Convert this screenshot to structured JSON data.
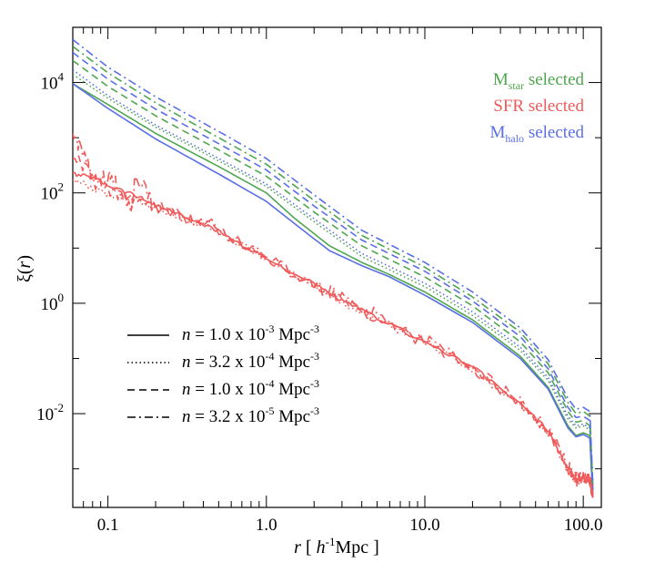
{
  "chart_data": {
    "type": "line",
    "title": "",
    "xlabel": {
      "pre": "r",
      "mid": " [ ",
      "h": "h",
      "sup": "-1",
      "post": "Mpc ]"
    },
    "ylabel": {
      "sym": "ξ",
      "open": "(",
      "var": "r",
      "close": ")"
    },
    "xscale": "log",
    "yscale": "log",
    "xlim": [
      0.06,
      130
    ],
    "ylim": [
      0.0002,
      100000
    ],
    "x_ticks": [
      {
        "value": 0.1,
        "label": "0.1"
      },
      {
        "value": 1,
        "label": "1.0"
      },
      {
        "value": 10,
        "label": "10.0"
      },
      {
        "value": 100,
        "label": "100.0"
      }
    ],
    "y_ticks": [
      {
        "value": 0.01,
        "base": "10",
        "exp": "-2"
      },
      {
        "value": 1,
        "base": "10",
        "exp": "0"
      },
      {
        "value": 100,
        "base": "10",
        "exp": "2"
      },
      {
        "value": 10000,
        "base": "10",
        "exp": "4"
      }
    ],
    "grid": false,
    "selection_legend": [
      {
        "main": "M",
        "sub": "star",
        "rest": " selected",
        "color": "#4fa64f"
      },
      {
        "main": "SFR selected",
        "sub": "",
        "rest": "",
        "color": "#f05a5a"
      },
      {
        "main": "M",
        "sub": "halo",
        "rest": " selected",
        "color": "#5a6ee6"
      }
    ],
    "density_legend": [
      {
        "style": "solid",
        "n": "n",
        "eq": " = 1.0 x 10",
        "exp": "-3",
        "unit": " Mpc",
        "unit_exp": "-3"
      },
      {
        "style": "dotted",
        "n": "n",
        "eq": " = 3.2 x 10",
        "exp": "-4",
        "unit": " Mpc",
        "unit_exp": "-3"
      },
      {
        "style": "dashed",
        "n": "n",
        "eq": " = 1.0 x 10",
        "exp": "-4",
        "unit": " Mpc",
        "unit_exp": "-3"
      },
      {
        "style": "dashdot",
        "n": "n",
        "eq": " = 3.2 x 10",
        "exp": "-5",
        "unit": " Mpc",
        "unit_exp": "-3"
      }
    ],
    "series": [
      {
        "color": "#4fa64f",
        "style": "solid",
        "noise": 0,
        "x": [
          0.06,
          0.1,
          0.2,
          0.5,
          1,
          1.5,
          2.5,
          4,
          6,
          10,
          20,
          40,
          60,
          80,
          90,
          100,
          110,
          115
        ],
        "y": [
          9500,
          4000,
          1200,
          300,
          100,
          35,
          11,
          5.5,
          3.3,
          1.6,
          0.5,
          0.11,
          0.03,
          0.006,
          0.004,
          0.0045,
          0.004,
          0.0003
        ]
      },
      {
        "color": "#5a6ee6",
        "style": "solid",
        "noise": 0,
        "x": [
          0.06,
          0.1,
          0.2,
          0.5,
          1,
          1.5,
          2.5,
          4,
          6,
          10,
          20,
          40,
          60,
          80,
          90,
          100,
          110,
          115
        ],
        "y": [
          9500,
          3400,
          950,
          220,
          70,
          28,
          9,
          4.8,
          3,
          1.4,
          0.45,
          0.1,
          0.028,
          0.0055,
          0.0038,
          0.0042,
          0.0036,
          0.0003
        ]
      },
      {
        "color": "#4fa64f",
        "style": "dotted",
        "noise": 0,
        "x": [
          0.06,
          0.1,
          0.2,
          0.5,
          1,
          2,
          4,
          10,
          20,
          40,
          60,
          80,
          90,
          100,
          110,
          115
        ],
        "y": [
          14000,
          5200,
          1550,
          380,
          130,
          30,
          7,
          2,
          0.6,
          0.14,
          0.04,
          0.008,
          0.0055,
          0.006,
          0.005,
          0.0004
        ]
      },
      {
        "color": "#5a6ee6",
        "style": "dotted",
        "noise": 0,
        "x": [
          0.06,
          0.1,
          0.2,
          0.5,
          1,
          2,
          4,
          10,
          20,
          40,
          60,
          80,
          90,
          100,
          110,
          115
        ],
        "y": [
          17000,
          5800,
          1700,
          420,
          145,
          34,
          8,
          2.3,
          0.7,
          0.16,
          0.045,
          0.009,
          0.006,
          0.0065,
          0.0055,
          0.0004
        ]
      },
      {
        "color": "#4fa64f",
        "style": "dashed",
        "noise": 0,
        "x": [
          0.06,
          0.1,
          0.2,
          0.5,
          1,
          2,
          4,
          10,
          20,
          40,
          60,
          80,
          90,
          100,
          110,
          115
        ],
        "y": [
          25000,
          8500,
          2500,
          600,
          200,
          45,
          11,
          3,
          0.9,
          0.2,
          0.055,
          0.011,
          0.007,
          0.0075,
          0.006,
          0.0004
        ]
      },
      {
        "color": "#5a6ee6",
        "style": "dashed",
        "noise": 0,
        "x": [
          0.06,
          0.1,
          0.2,
          0.5,
          1,
          2,
          4,
          10,
          20,
          40,
          60,
          80,
          90,
          100,
          110,
          115
        ],
        "y": [
          35000,
          11500,
          3300,
          780,
          260,
          58,
          14,
          3.8,
          1.1,
          0.25,
          0.065,
          0.013,
          0.0085,
          0.009,
          0.0075,
          0.0004
        ]
      },
      {
        "color": "#4fa64f",
        "style": "dashdot",
        "noise": 0,
        "x": [
          0.06,
          0.1,
          0.2,
          0.5,
          1,
          2,
          4,
          10,
          20,
          40,
          60,
          80,
          90,
          100,
          110,
          115
        ],
        "y": [
          45000,
          15000,
          4300,
          1000,
          330,
          73,
          17,
          4.5,
          1.3,
          0.3,
          0.08,
          0.016,
          0.01,
          0.011,
          0.009,
          0.0005
        ]
      },
      {
        "color": "#5a6ee6",
        "style": "dashdot",
        "noise": 0,
        "x": [
          0.06,
          0.1,
          0.2,
          0.5,
          1,
          2,
          4,
          10,
          20,
          40,
          60,
          80,
          90,
          100,
          110,
          115
        ],
        "y": [
          60000,
          19000,
          5500,
          1300,
          420,
          92,
          21,
          5.5,
          1.6,
          0.36,
          0.095,
          0.019,
          0.012,
          0.013,
          0.011,
          0.0005
        ]
      },
      {
        "color": "#f05a5a",
        "style": "solid",
        "noise": 0.04,
        "x": [
          0.06,
          0.08,
          0.1,
          0.15,
          0.2,
          0.3,
          0.5,
          1,
          2,
          3,
          5,
          10,
          20,
          40,
          60,
          80,
          90,
          100,
          110,
          115
        ],
        "y": [
          220,
          190,
          140,
          90,
          60,
          38,
          20,
          6.5,
          2.2,
          1.1,
          0.55,
          0.2,
          0.07,
          0.015,
          0.005,
          0.001,
          0.0006,
          0.0007,
          0.0006,
          0.0003
        ]
      },
      {
        "color": "#f05a5a",
        "style": "dotted",
        "noise": 0.06,
        "x": [
          0.06,
          0.08,
          0.1,
          0.15,
          0.2,
          0.3,
          0.5,
          1,
          2,
          3,
          5,
          10,
          20,
          40,
          60,
          80,
          90,
          100,
          110,
          115
        ],
        "y": [
          180,
          120,
          95,
          75,
          55,
          34,
          19,
          6.3,
          2.1,
          1.05,
          0.52,
          0.19,
          0.065,
          0.014,
          0.0048,
          0.0009,
          0.00055,
          0.00065,
          0.00055,
          0.0003
        ]
      },
      {
        "color": "#f05a5a",
        "style": "dashed",
        "noise": 0.1,
        "x": [
          0.06,
          0.08,
          0.1,
          0.12,
          0.15,
          0.2,
          0.3,
          0.5,
          1,
          2,
          3,
          5,
          10,
          20,
          40,
          60,
          80,
          90,
          100,
          110,
          115
        ],
        "y": [
          500,
          200,
          110,
          90,
          70,
          55,
          36,
          21,
          6.6,
          2.2,
          1.1,
          0.55,
          0.2,
          0.07,
          0.015,
          0.005,
          0.001,
          0.0006,
          0.0007,
          0.0006,
          0.0003
        ]
      },
      {
        "color": "#f05a5a",
        "style": "dashdot",
        "noise": 0.14,
        "x": [
          0.06,
          0.07,
          0.08,
          0.1,
          0.12,
          0.14,
          0.15,
          0.2,
          0.3,
          0.5,
          1,
          2,
          3,
          5,
          10,
          20,
          40,
          60,
          80,
          90,
          100,
          110,
          115
        ],
        "y": [
          1000,
          600,
          150,
          200,
          120,
          50,
          200,
          60,
          38,
          22,
          7,
          2.3,
          1.2,
          0.58,
          0.21,
          0.072,
          0.016,
          0.0052,
          0.0011,
          0.00065,
          0.00075,
          0.00065,
          0.0003
        ]
      }
    ]
  }
}
